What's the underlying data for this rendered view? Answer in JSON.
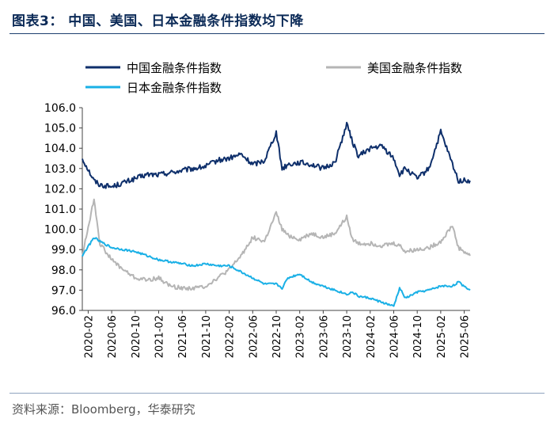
{
  "figure": {
    "title": "图表3：  中国、美国、日本金融条件指数均下降",
    "source": "资料来源：Bloomberg，华泰研究"
  },
  "chart_data": {
    "type": "line",
    "title": "中国、美国、日本金融条件指数均下降",
    "xlabel": "",
    "ylabel": "",
    "ylim": [
      96.0,
      106.0
    ],
    "yticks": [
      "96.0",
      "97.0",
      "98.0",
      "99.0",
      "100.0",
      "101.0",
      "102.0",
      "103.0",
      "104.0",
      "105.0",
      "106.0"
    ],
    "xticks": [
      "2020-02",
      "2020-06",
      "2020-10",
      "2021-02",
      "2021-06",
      "2021-10",
      "2022-02",
      "2022-06",
      "2022-10",
      "2023-02",
      "2023-06",
      "2023-10",
      "2024-02",
      "2024-06",
      "2024-10",
      "2025-02",
      "2025-06"
    ],
    "legend": "top",
    "x": [
      "2020-01",
      "2020-03",
      "2020-04",
      "2020-06",
      "2020-08",
      "2020-10",
      "2020-12",
      "2021-02",
      "2021-04",
      "2021-06",
      "2021-08",
      "2021-10",
      "2021-12",
      "2022-02",
      "2022-04",
      "2022-06",
      "2022-08",
      "2022-10",
      "2022-11",
      "2022-12",
      "2023-02",
      "2023-04",
      "2023-06",
      "2023-08",
      "2023-10",
      "2023-11",
      "2023-12",
      "2024-02",
      "2024-04",
      "2024-06",
      "2024-07",
      "2024-08",
      "2024-10",
      "2024-12",
      "2025-02",
      "2025-04",
      "2025-05",
      "2025-07"
    ],
    "series": [
      {
        "name": "中国金融条件指数",
        "color": "#0e2f6b",
        "values": [
          103.5,
          102.4,
          102.2,
          102.1,
          102.3,
          102.5,
          102.7,
          102.7,
          102.8,
          102.9,
          103.0,
          103.1,
          103.4,
          103.5,
          103.7,
          103.2,
          103.4,
          104.8,
          103.0,
          103.2,
          103.3,
          103.2,
          103.0,
          103.3,
          105.2,
          104.3,
          103.6,
          104.0,
          104.1,
          103.5,
          102.7,
          103.0,
          102.5,
          103.0,
          104.8,
          103.2,
          102.4,
          102.4
        ]
      },
      {
        "name": "美国金融条件指数",
        "color": "#b5b5b5",
        "values": [
          98.7,
          101.5,
          99.3,
          98.5,
          98.0,
          97.6,
          97.5,
          97.6,
          97.2,
          97.1,
          97.1,
          97.2,
          97.6,
          98.0,
          98.7,
          99.6,
          99.4,
          100.8,
          100.0,
          99.7,
          99.5,
          99.8,
          99.6,
          99.8,
          100.6,
          99.5,
          99.3,
          99.3,
          99.2,
          99.3,
          99.2,
          98.9,
          99.0,
          99.1,
          99.4,
          100.2,
          99.1,
          98.7
        ]
      },
      {
        "name": "日本金融条件指数",
        "color": "#1ab0e6",
        "values": [
          98.7,
          99.6,
          99.4,
          99.1,
          99.0,
          98.9,
          98.7,
          98.5,
          98.4,
          98.3,
          98.2,
          98.3,
          98.2,
          98.2,
          97.9,
          97.6,
          97.3,
          97.3,
          97.1,
          97.6,
          97.8,
          97.4,
          97.2,
          97.0,
          96.8,
          96.9,
          96.7,
          96.6,
          96.4,
          96.2,
          97.1,
          96.6,
          96.9,
          97.0,
          97.2,
          97.2,
          97.4,
          97.0
        ]
      }
    ]
  }
}
